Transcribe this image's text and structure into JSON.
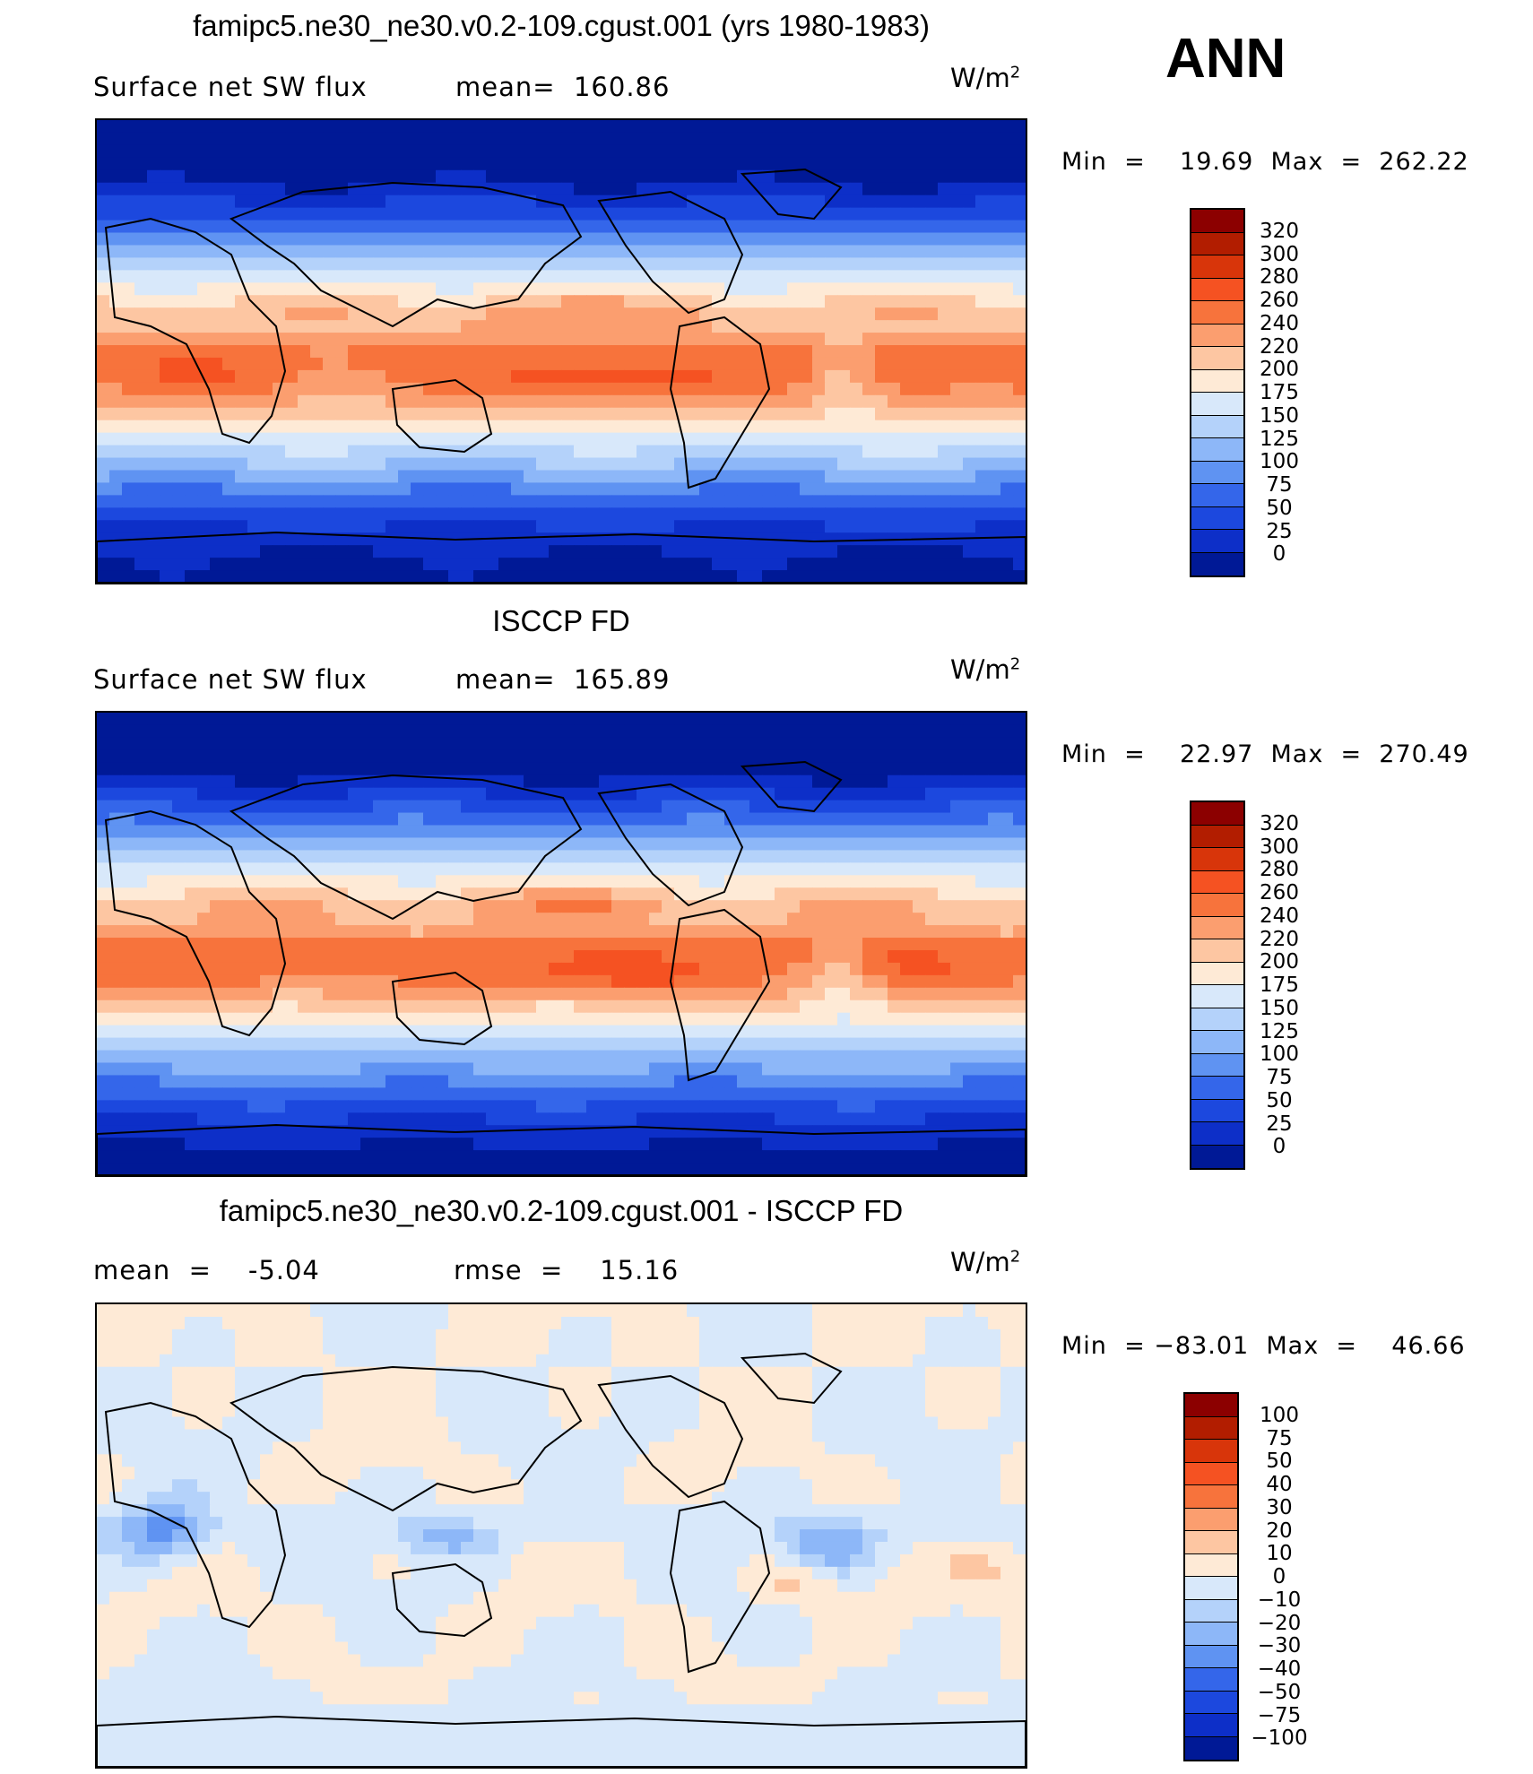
{
  "season": "ANN",
  "panels": [
    {
      "title": "famipc5.ne30_ne30.v0.2-109.cgust.001 (yrs 1980-1983)",
      "left_text": "Surface net SW flux",
      "right_text": "mean=  160.86",
      "units": "W/m",
      "units_sup": "2",
      "minmax": "Min  =    19.69  Max  =  262.22",
      "palette": "abs",
      "levels": [
        "320",
        "300",
        "280",
        "260",
        "240",
        "220",
        "200",
        "175",
        "150",
        "125",
        "100",
        "75",
        "50",
        "25",
        "0"
      ],
      "colors": [
        "#8c0000",
        "#b21d00",
        "#d8350a",
        "#f55222",
        "#f7733c",
        "#fb9e6f",
        "#fdc6a2",
        "#feead6",
        "#d8e8fa",
        "#b4d2fa",
        "#8db7f8",
        "#5f93f2",
        "#3466ea",
        "#1c48de",
        "#0d2fc8",
        "#001996"
      ]
    },
    {
      "title": "ISCCP FD",
      "left_text": "Surface net SW flux",
      "right_text": "mean=  165.89",
      "units": "W/m",
      "units_sup": "2",
      "minmax": "Min  =    22.97  Max  =  270.49",
      "palette": "abs",
      "levels": [
        "320",
        "300",
        "280",
        "260",
        "240",
        "220",
        "200",
        "175",
        "150",
        "125",
        "100",
        "75",
        "50",
        "25",
        "0"
      ],
      "colors": [
        "#8c0000",
        "#b21d00",
        "#d8350a",
        "#f55222",
        "#f7733c",
        "#fb9e6f",
        "#fdc6a2",
        "#feead6",
        "#d8e8fa",
        "#b4d2fa",
        "#8db7f8",
        "#5f93f2",
        "#3466ea",
        "#1c48de",
        "#0d2fc8",
        "#001996"
      ]
    },
    {
      "title": "famipc5.ne30_ne30.v0.2-109.cgust.001 - ISCCP FD",
      "left_text": "mean  =    -5.04",
      "right_text": "rmse  =    15.16",
      "units": "W/m",
      "units_sup": "2",
      "minmax": "Min  = −83.01  Max  =    46.66",
      "palette": "diff",
      "levels": [
        "100",
        "75",
        "50",
        "40",
        "30",
        "20",
        "10",
        "0",
        "−10",
        "−20",
        "−30",
        "−40",
        "−50",
        "−75",
        "−100"
      ],
      "colors": [
        "#8c0000",
        "#b21d00",
        "#d8350a",
        "#f55222",
        "#f7733c",
        "#fb9e6f",
        "#fdc6a2",
        "#feead6",
        "#d8e8fa",
        "#b4d2fa",
        "#8db7f8",
        "#5f93f2",
        "#3466ea",
        "#1c48de",
        "#0d2fc8",
        "#001996"
      ]
    }
  ]
}
